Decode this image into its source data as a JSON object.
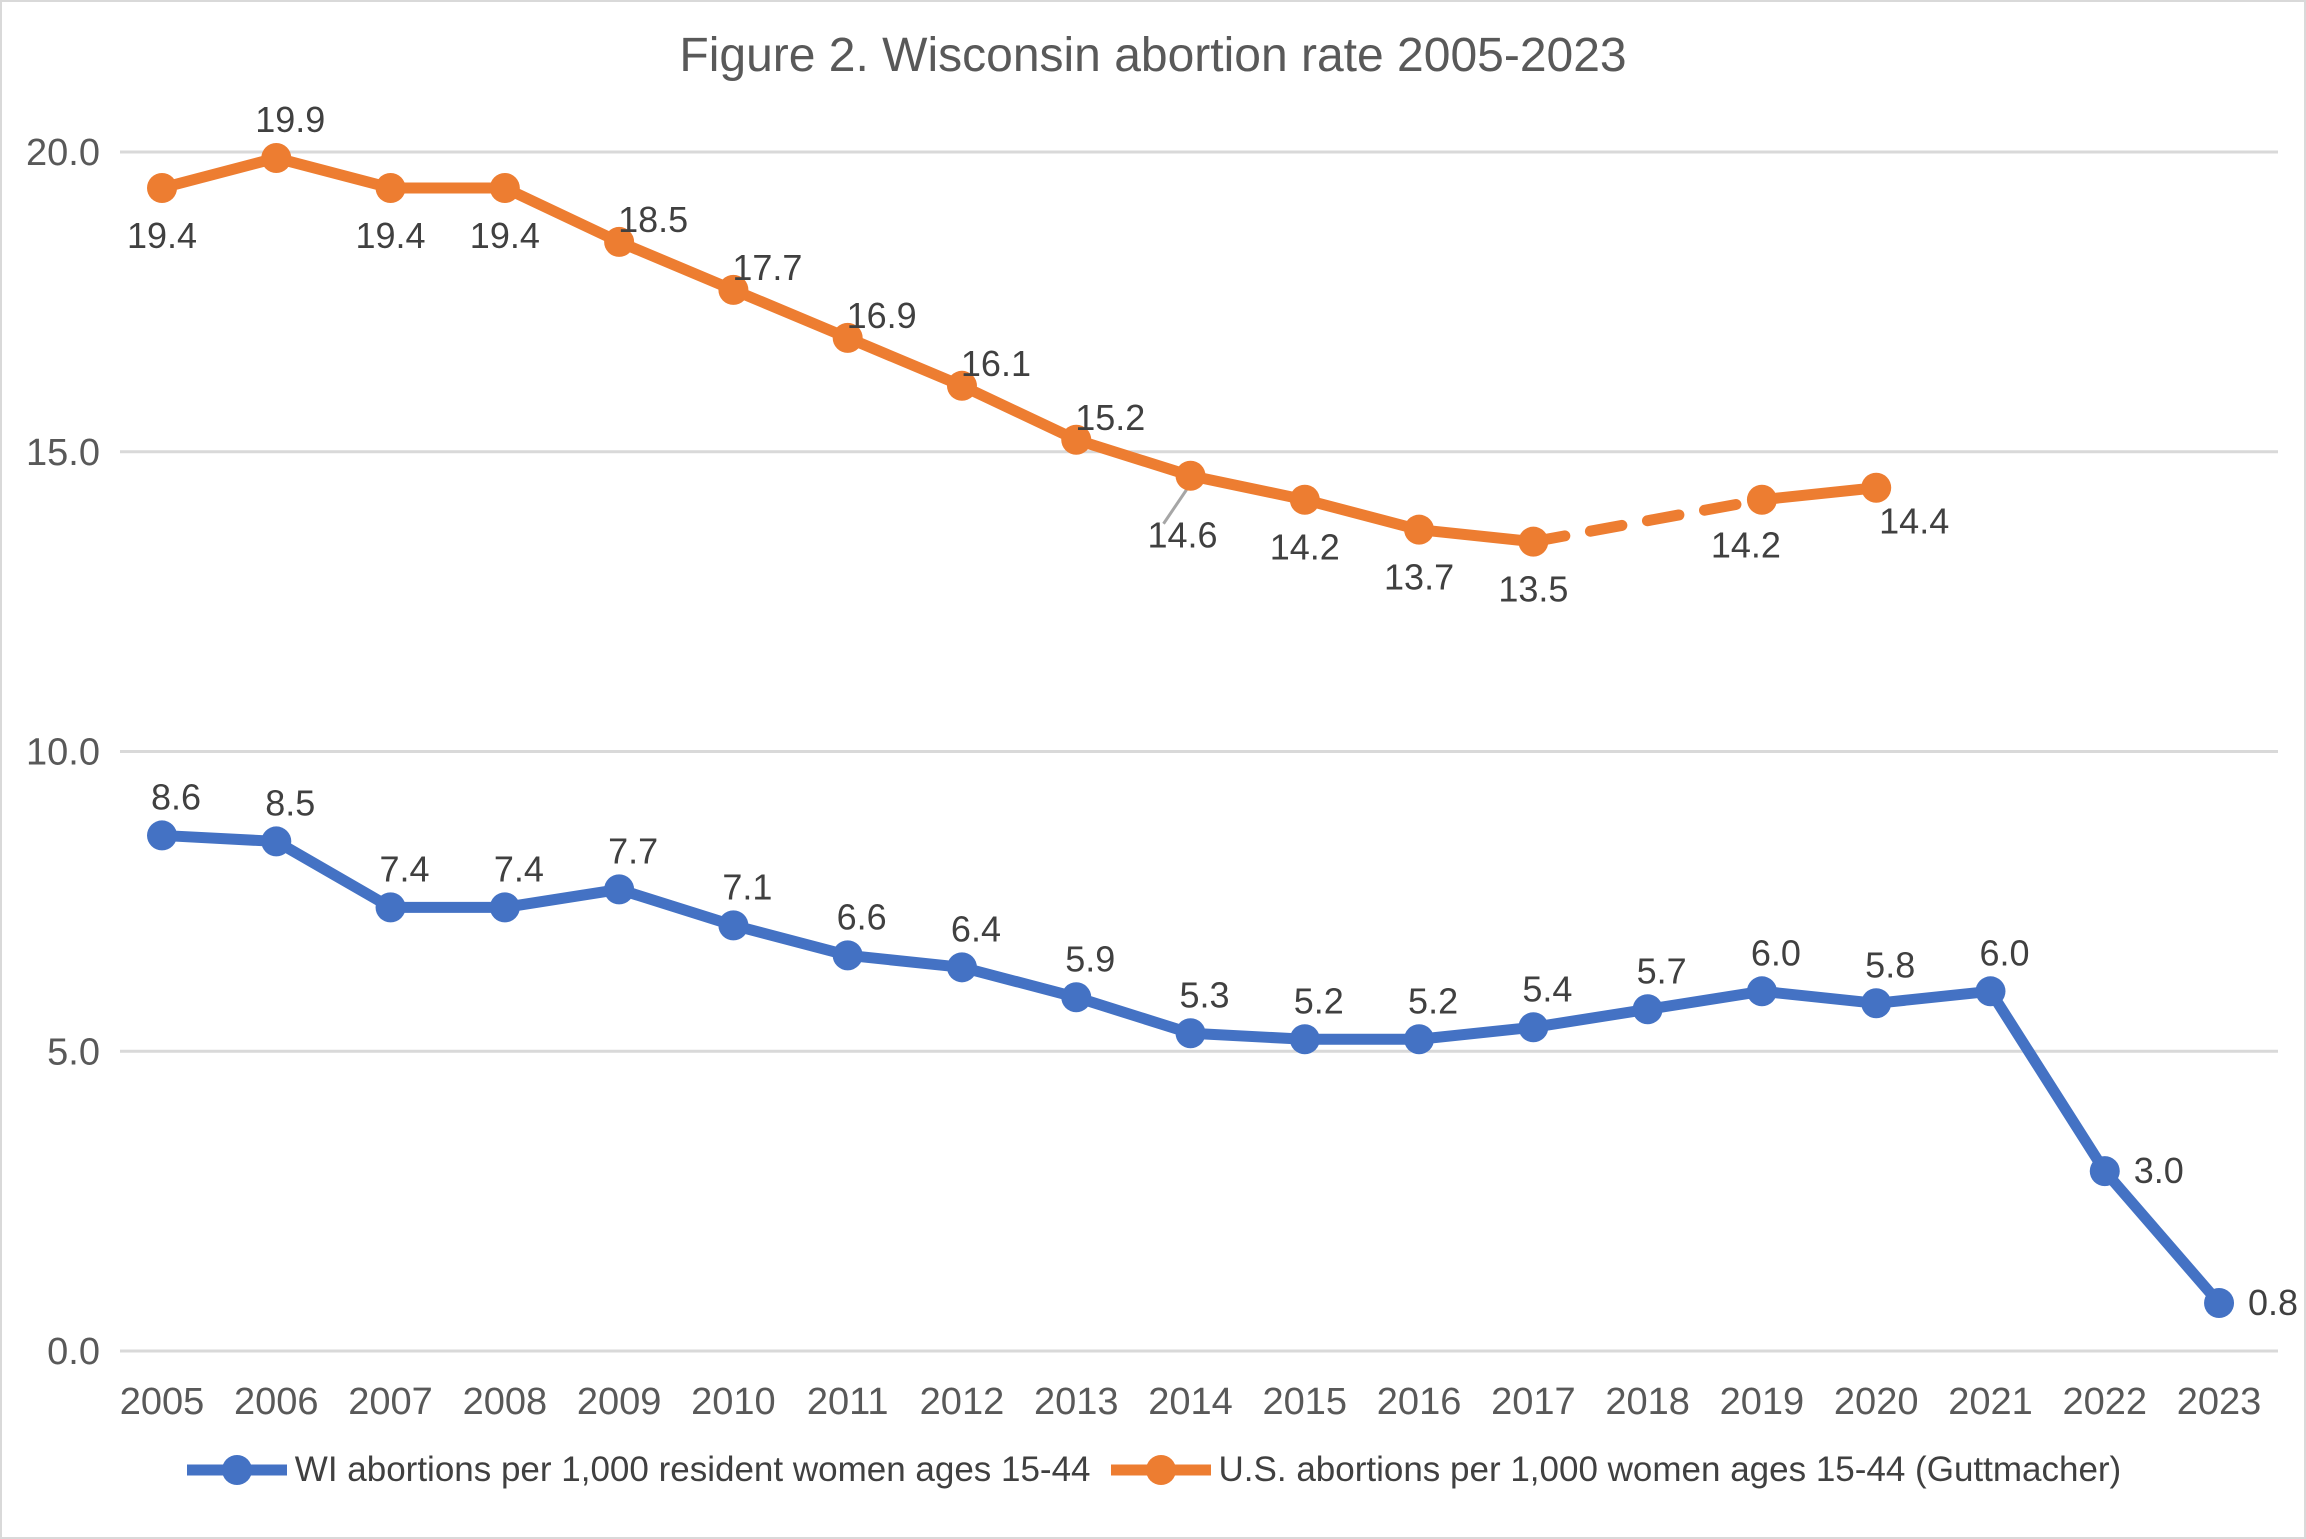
{
  "title": "Figure 2. Wisconsin abortion rate 2005-2023",
  "colors": {
    "wi_series": "#4472C4",
    "us_series": "#ED7D31",
    "gridline": "#d9d9d9",
    "axis_text": "#595959",
    "label_text": "#404040",
    "leader_line": "#a6a6a6",
    "border": "#d9d9d9",
    "background": "#ffffff"
  },
  "chart_data": {
    "type": "line",
    "title": "Figure 2. Wisconsin abortion rate 2005-2023",
    "categories": [
      "2005",
      "2006",
      "2007",
      "2008",
      "2009",
      "2010",
      "2011",
      "2012",
      "2013",
      "2014",
      "2015",
      "2016",
      "2017",
      "2018",
      "2019",
      "2020",
      "2021",
      "2022",
      "2023"
    ],
    "ylim": [
      0,
      20
    ],
    "yticks": [
      0,
      5,
      10,
      15,
      20
    ],
    "ytick_labels": [
      "0.0",
      "5.0",
      "10.0",
      "15.0",
      "20.0"
    ],
    "grid": true,
    "legend_position": "bottom",
    "series": [
      {
        "name": "WI abortions per 1,000 resident women ages 15-44",
        "color": "#4472C4",
        "marker": "circle",
        "values": [
          8.6,
          8.5,
          7.4,
          7.4,
          7.7,
          7.1,
          6.6,
          6.4,
          5.9,
          5.3,
          5.2,
          5.2,
          5.4,
          5.7,
          6.0,
          5.8,
          6.0,
          3.0,
          0.8
        ],
        "labels": [
          "8.6",
          "8.5",
          "7.4",
          "7.4",
          "7.7",
          "7.1",
          "6.6",
          "6.4",
          "5.9",
          "5.3",
          "5.2",
          "5.2",
          "5.4",
          "5.7",
          "6.0",
          "5.8",
          "6.0",
          "3.0",
          "0.8"
        ],
        "label_positions": [
          "above",
          "above",
          "above",
          "above",
          "above",
          "above",
          "above",
          "above",
          "above",
          "above",
          "above",
          "above",
          "above",
          "above",
          "above",
          "above",
          "above",
          "right",
          "right"
        ]
      },
      {
        "name": "U.S. abortions per 1,000 women ages 15-44 (Guttmacher)",
        "color": "#ED7D31",
        "marker": "circle",
        "values": [
          19.4,
          19.9,
          19.4,
          19.4,
          18.5,
          17.7,
          16.9,
          16.1,
          15.2,
          14.6,
          14.2,
          13.7,
          13.5,
          null,
          14.2,
          14.4,
          null,
          null,
          null
        ],
        "labels": [
          "19.4",
          "19.9",
          "19.4",
          "19.4",
          "18.5",
          "17.7",
          "16.9",
          "16.1",
          "15.2",
          "14.6",
          "14.2",
          "13.7",
          "13.5",
          null,
          "14.2",
          "14.4",
          null,
          null,
          null
        ],
        "label_positions": [
          "below",
          "above",
          "below",
          "below",
          "above-right",
          "above-right",
          "above-right",
          "above-right",
          "above-right",
          "below-leader",
          "below",
          "below",
          "below",
          null,
          "below-left",
          "below-right",
          null,
          null,
          null
        ],
        "gap_style": "dashed"
      }
    ]
  },
  "legend": {
    "items": [
      {
        "label": "WI abortions per 1,000 resident women ages 15-44",
        "color": "#4472C4"
      },
      {
        "label": "U.S. abortions per 1,000 women ages 15-44 (Guttmacher)",
        "color": "#ED7D31"
      }
    ]
  }
}
